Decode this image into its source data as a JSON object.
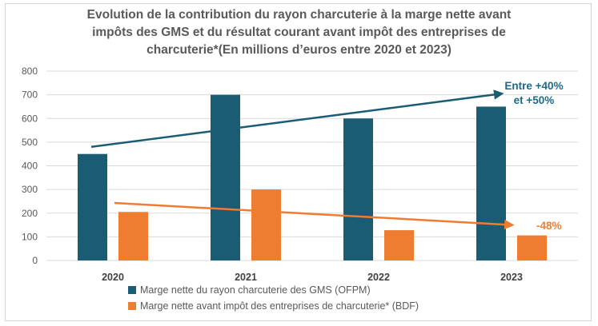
{
  "chart_data": {
    "type": "bar",
    "title_lines": [
      "Evolution de la contribution du rayon charcuterie à la marge nette avant",
      "impôts des GMS et du résultat courant avant impôt des entreprises de",
      "charcuterie*(En millions d’euros entre 2020 et 2023)"
    ],
    "categories": [
      "2020",
      "2021",
      "2022",
      "2023"
    ],
    "series": [
      {
        "name": "Marge nette du rayon charcuterie des GMS (OFPM)",
        "color": "#1b5c75",
        "values": [
          450,
          700,
          600,
          650
        ]
      },
      {
        "name": "Marge nette avant impôt des entreprises de charcuterie* (BDF)",
        "color": "#ee7d31",
        "values": [
          205,
          300,
          128,
          106
        ]
      }
    ],
    "ylim": [
      0,
      800
    ],
    "yticks": [
      "0",
      "100",
      "200",
      "300",
      "400",
      "500",
      "600",
      "700",
      "800"
    ],
    "grid": true,
    "legend_position": "bottom-center",
    "annotations": [
      {
        "series": 0,
        "from": [
          0,
          480
        ],
        "to": [
          3,
          705
        ],
        "label_lines": [
          "Entre +40%",
          "et +50%"
        ],
        "color": "#1b6a8a"
      },
      {
        "series": 1,
        "from": [
          0,
          243
        ],
        "to": [
          3,
          150
        ],
        "label_lines": [
          "-48%"
        ],
        "color": "#ee7d31"
      }
    ]
  }
}
